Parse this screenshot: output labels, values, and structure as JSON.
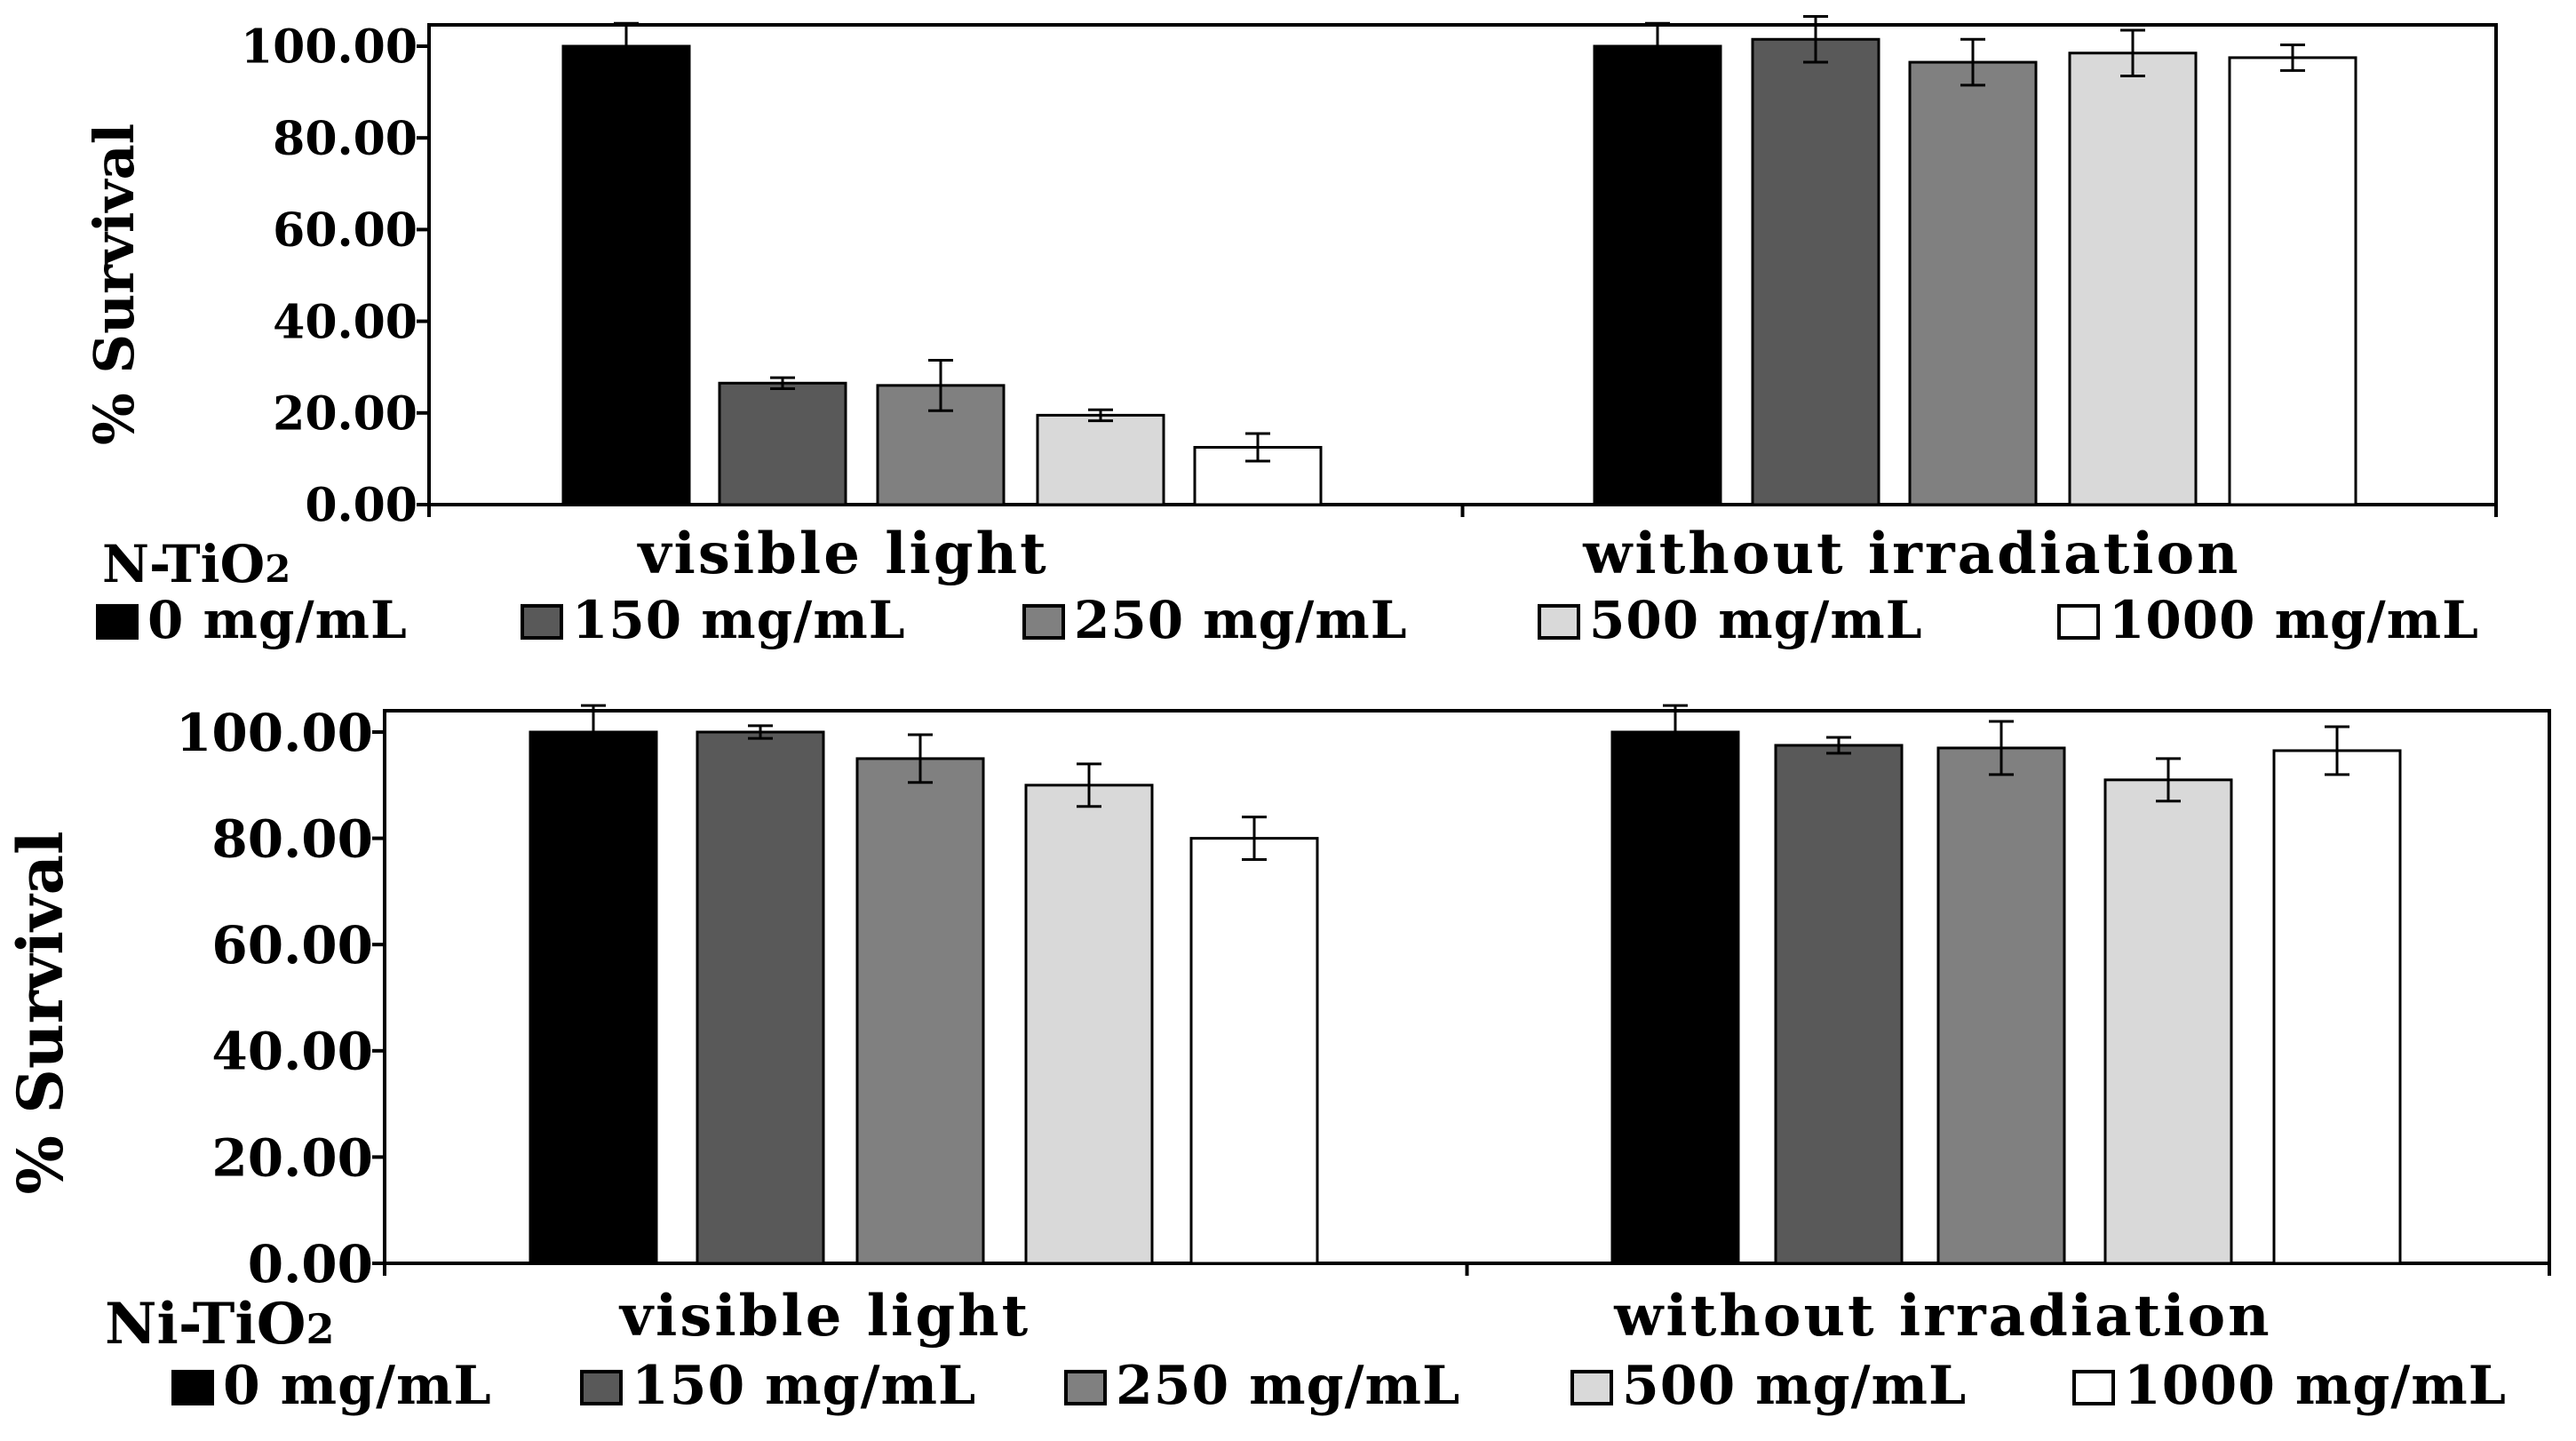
{
  "chart_data": [
    {
      "type": "bar",
      "panel_label": "N-TiO",
      "panel_subscript": "2",
      "ylabel": "% Survival",
      "ylim": [
        0,
        100
      ],
      "yticks": [
        0,
        20,
        40,
        60,
        80,
        100
      ],
      "ytick_labels": [
        "0.00",
        "20.00",
        "40.00",
        "60.00",
        "80.00",
        "100.00"
      ],
      "categories": [
        "visible light",
        "without irradiation"
      ],
      "series": [
        {
          "name": "0 mg/mL",
          "color": "#000000",
          "values": [
            100,
            100
          ],
          "errors": [
            5,
            5
          ]
        },
        {
          "name": "150 mg/mL",
          "color": "#595959",
          "values": [
            26.5,
            101.5
          ],
          "errors": [
            1.2,
            5
          ]
        },
        {
          "name": "250 mg/mL",
          "color": "#808080",
          "values": [
            26,
            96.5
          ],
          "errors": [
            5.5,
            5
          ]
        },
        {
          "name": "500 mg/mL",
          "color": "#d9d9d9",
          "values": [
            19.5,
            98.5
          ],
          "errors": [
            1.2,
            5
          ]
        },
        {
          "name": "1000 mg/mL",
          "color": "#ffffff",
          "values": [
            12.5,
            97.5
          ],
          "errors": [
            3,
            2.8
          ]
        }
      ]
    },
    {
      "type": "bar",
      "panel_label": "Ni-TiO",
      "panel_subscript": "2",
      "ylabel": "% Survival",
      "ylim": [
        0,
        100
      ],
      "yticks": [
        0,
        20,
        40,
        60,
        80,
        100
      ],
      "ytick_labels": [
        "0.00",
        "20.00",
        "40.00",
        "60.00",
        "80.00",
        "100.00"
      ],
      "categories": [
        "visible light",
        "without irradiation"
      ],
      "series": [
        {
          "name": "0 mg/mL",
          "color": "#000000",
          "values": [
            100,
            100
          ],
          "errors": [
            5,
            5
          ]
        },
        {
          "name": "150 mg/mL",
          "color": "#595959",
          "values": [
            100,
            97.5
          ],
          "errors": [
            1.2,
            1.5
          ]
        },
        {
          "name": "250 mg/mL",
          "color": "#808080",
          "values": [
            95,
            97
          ],
          "errors": [
            4.5,
            5
          ]
        },
        {
          "name": "500 mg/mL",
          "color": "#d9d9d9",
          "values": [
            90,
            91
          ],
          "errors": [
            4,
            4
          ]
        },
        {
          "name": "1000 mg/mL",
          "color": "#ffffff",
          "values": [
            80,
            96.5
          ],
          "errors": [
            4,
            4.5
          ]
        }
      ]
    }
  ]
}
